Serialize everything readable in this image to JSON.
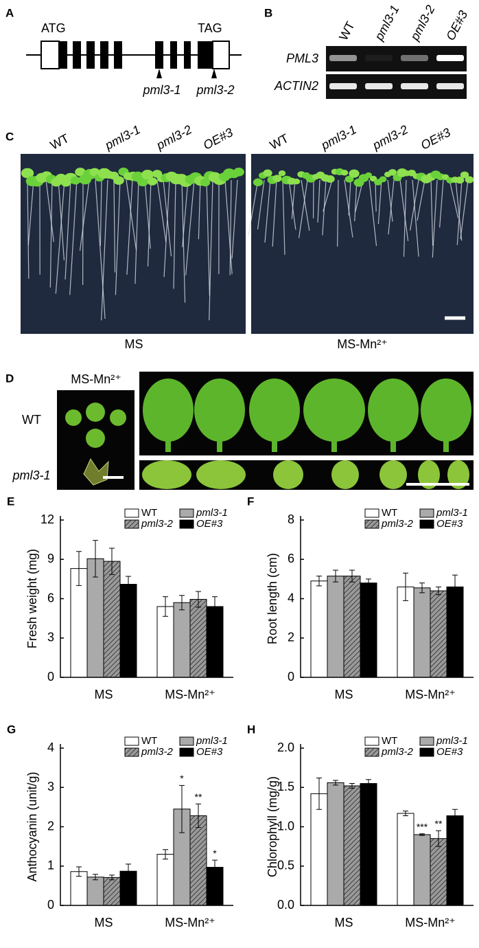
{
  "panels": {
    "a": "A",
    "b": "B",
    "c": "C",
    "d": "D"
  },
  "gene_diagram": {
    "start": "ATG",
    "stop": "TAG",
    "alleles": [
      "pml3-1",
      "pml3-2"
    ]
  },
  "rt_pcr": {
    "lanes": [
      "WT",
      "pml3-1",
      "pml3-2",
      "OE#3"
    ],
    "genes": [
      "PML3",
      "ACTIN2"
    ]
  },
  "seedlings": {
    "lines": [
      "WT",
      "pml3-1",
      "pml3-2",
      "OE#3"
    ],
    "conditions": [
      "MS",
      "MS-Mn²⁺"
    ]
  },
  "leaves": {
    "condition": "MS-Mn²⁺",
    "lines": [
      "WT",
      "pml3-1"
    ]
  },
  "chart_data": [
    {
      "type": "bar",
      "label": "E",
      "y_label": "Fresh weight (mg)",
      "categories": [
        "MS",
        "MS-Mn²⁺"
      ],
      "series": [
        {
          "name": "WT",
          "color": "#ffffff",
          "values": [
            8.3,
            5.4
          ],
          "errors": [
            1.3,
            0.75
          ]
        },
        {
          "name": "pml3-1",
          "color": "#aaaaaa",
          "values": [
            9.05,
            5.7
          ],
          "errors": [
            1.4,
            0.55
          ]
        },
        {
          "name": "pml3-2",
          "color": "#8c8c8c",
          "hatch": true,
          "values": [
            8.85,
            5.95
          ],
          "errors": [
            1.0,
            0.6
          ]
        },
        {
          "name": "OE#3",
          "color": "#000000",
          "values": [
            7.1,
            5.4
          ],
          "errors": [
            0.6,
            0.75
          ]
        }
      ],
      "ylim": [
        0,
        12
      ],
      "yticks": [
        0,
        3,
        6,
        9,
        12
      ],
      "legend": "upper right"
    },
    {
      "type": "bar",
      "label": "F",
      "y_label": "Root length (cm)",
      "categories": [
        "MS",
        "MS-Mn²⁺"
      ],
      "series": [
        {
          "name": "WT",
          "color": "#ffffff",
          "values": [
            4.9,
            4.6
          ],
          "errors": [
            0.25,
            0.7
          ]
        },
        {
          "name": "pml3-1",
          "color": "#aaaaaa",
          "values": [
            5.15,
            4.55
          ],
          "errors": [
            0.3,
            0.25
          ]
        },
        {
          "name": "pml3-2",
          "color": "#8c8c8c",
          "hatch": true,
          "values": [
            5.15,
            4.4
          ],
          "errors": [
            0.3,
            0.2
          ]
        },
        {
          "name": "OE#3",
          "color": "#000000",
          "values": [
            4.8,
            4.6
          ],
          "errors": [
            0.2,
            0.6
          ]
        }
      ],
      "ylim": [
        0,
        8
      ],
      "yticks": [
        0,
        2,
        4,
        6,
        8
      ],
      "legend": "upper right"
    },
    {
      "type": "bar",
      "label": "G",
      "y_label": "Anthocyanin (unit/g)",
      "categories": [
        "MS",
        "MS-Mn²⁺"
      ],
      "series": [
        {
          "name": "WT",
          "color": "#ffffff",
          "values": [
            0.86,
            1.3
          ],
          "errors": [
            0.12,
            0.12
          ]
        },
        {
          "name": "pml3-1",
          "color": "#aaaaaa",
          "values": [
            0.72,
            2.45
          ],
          "errors": [
            0.07,
            0.6
          ],
          "significance": [
            null,
            "*"
          ]
        },
        {
          "name": "pml3-2",
          "color": "#8c8c8c",
          "hatch": true,
          "values": [
            0.71,
            2.28
          ],
          "errors": [
            0.06,
            0.3
          ],
          "significance": [
            null,
            "**"
          ]
        },
        {
          "name": "OE#3",
          "color": "#000000",
          "values": [
            0.87,
            0.97
          ],
          "errors": [
            0.18,
            0.18
          ],
          "significance": [
            null,
            "*"
          ]
        }
      ],
      "ylim": [
        0,
        4
      ],
      "yticks": [
        0,
        1,
        2,
        3,
        4
      ],
      "legend": "upper right"
    },
    {
      "type": "bar",
      "label": "H",
      "y_label": "Chlorophyll (mg/g)",
      "categories": [
        "MS",
        "MS-Mn²⁺"
      ],
      "series": [
        {
          "name": "WT",
          "color": "#ffffff",
          "values": [
            1.42,
            1.17
          ],
          "errors": [
            0.2,
            0.03
          ]
        },
        {
          "name": "pml3-1",
          "color": "#aaaaaa",
          "values": [
            1.56,
            0.9
          ],
          "errors": [
            0.03,
            0.01
          ],
          "significance": [
            null,
            "***"
          ]
        },
        {
          "name": "pml3-2",
          "color": "#8c8c8c",
          "hatch": true,
          "values": [
            1.52,
            0.85
          ],
          "errors": [
            0.03,
            0.1
          ],
          "significance": [
            null,
            "**"
          ]
        },
        {
          "name": "OE#3",
          "color": "#000000",
          "values": [
            1.55,
            1.14
          ],
          "errors": [
            0.05,
            0.08
          ]
        }
      ],
      "ylim": [
        0,
        2
      ],
      "yticks": [
        {
          "value": 0,
          "label": "0.0"
        },
        {
          "value": 0.5,
          "label": "0.5"
        },
        {
          "value": 1,
          "label": "1.0"
        },
        {
          "value": 1.5,
          "label": "1.5"
        },
        {
          "value": 2,
          "label": "2.0"
        }
      ],
      "legend": "upper right"
    }
  ]
}
